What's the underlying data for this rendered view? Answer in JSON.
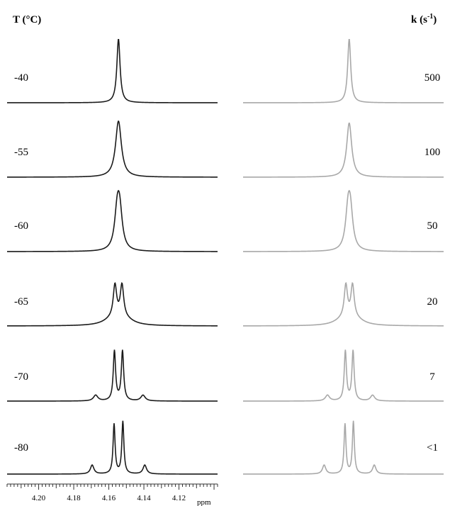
{
  "left_header": "T (°C)",
  "right_header_main": "k (s",
  "right_header_sup": "-1",
  "right_header_close": ")",
  "axis_unit": "ppm",
  "chart_data": {
    "type": "line",
    "title": "",
    "xlabel": "ppm",
    "xlim": [
      4.218,
      4.098
    ],
    "x_ticks": [
      4.2,
      4.18,
      4.16,
      4.14,
      4.12
    ],
    "x_tick_labels": [
      "4.20",
      "4.18",
      "4.16",
      "4.14",
      "4.12"
    ],
    "colors": {
      "experimental": "#1a1a1a",
      "simulated": "#a8a8a8"
    },
    "experimental": {
      "label_header": "T (°C)",
      "rows": [
        {
          "label": "-40",
          "peaks": [
            {
              "x": 4.1545,
              "w": 0.0011,
              "h": 1.0
            }
          ]
        },
        {
          "label": "-55",
          "peaks": [
            {
              "x": 4.1545,
              "w": 0.002,
              "h": 0.88
            }
          ]
        },
        {
          "label": "-60",
          "peaks": [
            {
              "x": 4.1538,
              "w": 0.0018,
              "h": 0.55
            },
            {
              "x": 4.1552,
              "w": 0.0018,
              "h": 0.55
            }
          ]
        },
        {
          "label": "-65",
          "peaks": [
            {
              "x": 4.1525,
              "w": 0.0012,
              "h": 0.52
            },
            {
              "x": 4.1565,
              "w": 0.0012,
              "h": 0.52
            },
            {
              "x": 4.1505,
              "w": 0.006,
              "h": 0.08
            },
            {
              "x": 4.1585,
              "w": 0.006,
              "h": 0.08
            }
          ]
        },
        {
          "label": "-70",
          "peaks": [
            {
              "x": 4.1522,
              "w": 0.0008,
              "h": 0.78
            },
            {
              "x": 4.1568,
              "w": 0.0008,
              "h": 0.78
            },
            {
              "x": 4.1405,
              "w": 0.0015,
              "h": 0.09
            },
            {
              "x": 4.1675,
              "w": 0.0015,
              "h": 0.09
            }
          ]
        },
        {
          "label": "-80",
          "peaks": [
            {
              "x": 4.152,
              "w": 0.0007,
              "h": 0.82
            },
            {
              "x": 4.157,
              "w": 0.0007,
              "h": 0.78
            },
            {
              "x": 4.1395,
              "w": 0.0012,
              "h": 0.14
            },
            {
              "x": 4.1695,
              "w": 0.0012,
              "h": 0.14
            }
          ]
        }
      ]
    },
    "simulated": {
      "label_header": "k (s-1)",
      "rows": [
        {
          "label": "500",
          "peaks": [
            {
              "x": 4.1545,
              "w": 0.0011,
              "h": 1.0
            }
          ]
        },
        {
          "label": "100",
          "peaks": [
            {
              "x": 4.1545,
              "w": 0.0018,
              "h": 0.85
            }
          ]
        },
        {
          "label": "50",
          "peaks": [
            {
              "x": 4.1538,
              "w": 0.0018,
              "h": 0.55
            },
            {
              "x": 4.1552,
              "w": 0.0018,
              "h": 0.55
            }
          ]
        },
        {
          "label": "20",
          "peaks": [
            {
              "x": 4.1525,
              "w": 0.0012,
              "h": 0.52
            },
            {
              "x": 4.1565,
              "w": 0.0012,
              "h": 0.52
            },
            {
              "x": 4.1505,
              "w": 0.006,
              "h": 0.08
            },
            {
              "x": 4.1585,
              "w": 0.006,
              "h": 0.08
            }
          ]
        },
        {
          "label": "7",
          "peaks": [
            {
              "x": 4.1522,
              "w": 0.0008,
              "h": 0.78
            },
            {
              "x": 4.1568,
              "w": 0.0008,
              "h": 0.78
            },
            {
              "x": 4.1405,
              "w": 0.0015,
              "h": 0.09
            },
            {
              "x": 4.1675,
              "w": 0.0015,
              "h": 0.09
            }
          ]
        },
        {
          "label": "<1",
          "peaks": [
            {
              "x": 4.152,
              "w": 0.0007,
              "h": 0.82
            },
            {
              "x": 4.157,
              "w": 0.0007,
              "h": 0.78
            },
            {
              "x": 4.1395,
              "w": 0.0012,
              "h": 0.14
            },
            {
              "x": 4.1695,
              "w": 0.0012,
              "h": 0.14
            }
          ]
        }
      ]
    }
  }
}
